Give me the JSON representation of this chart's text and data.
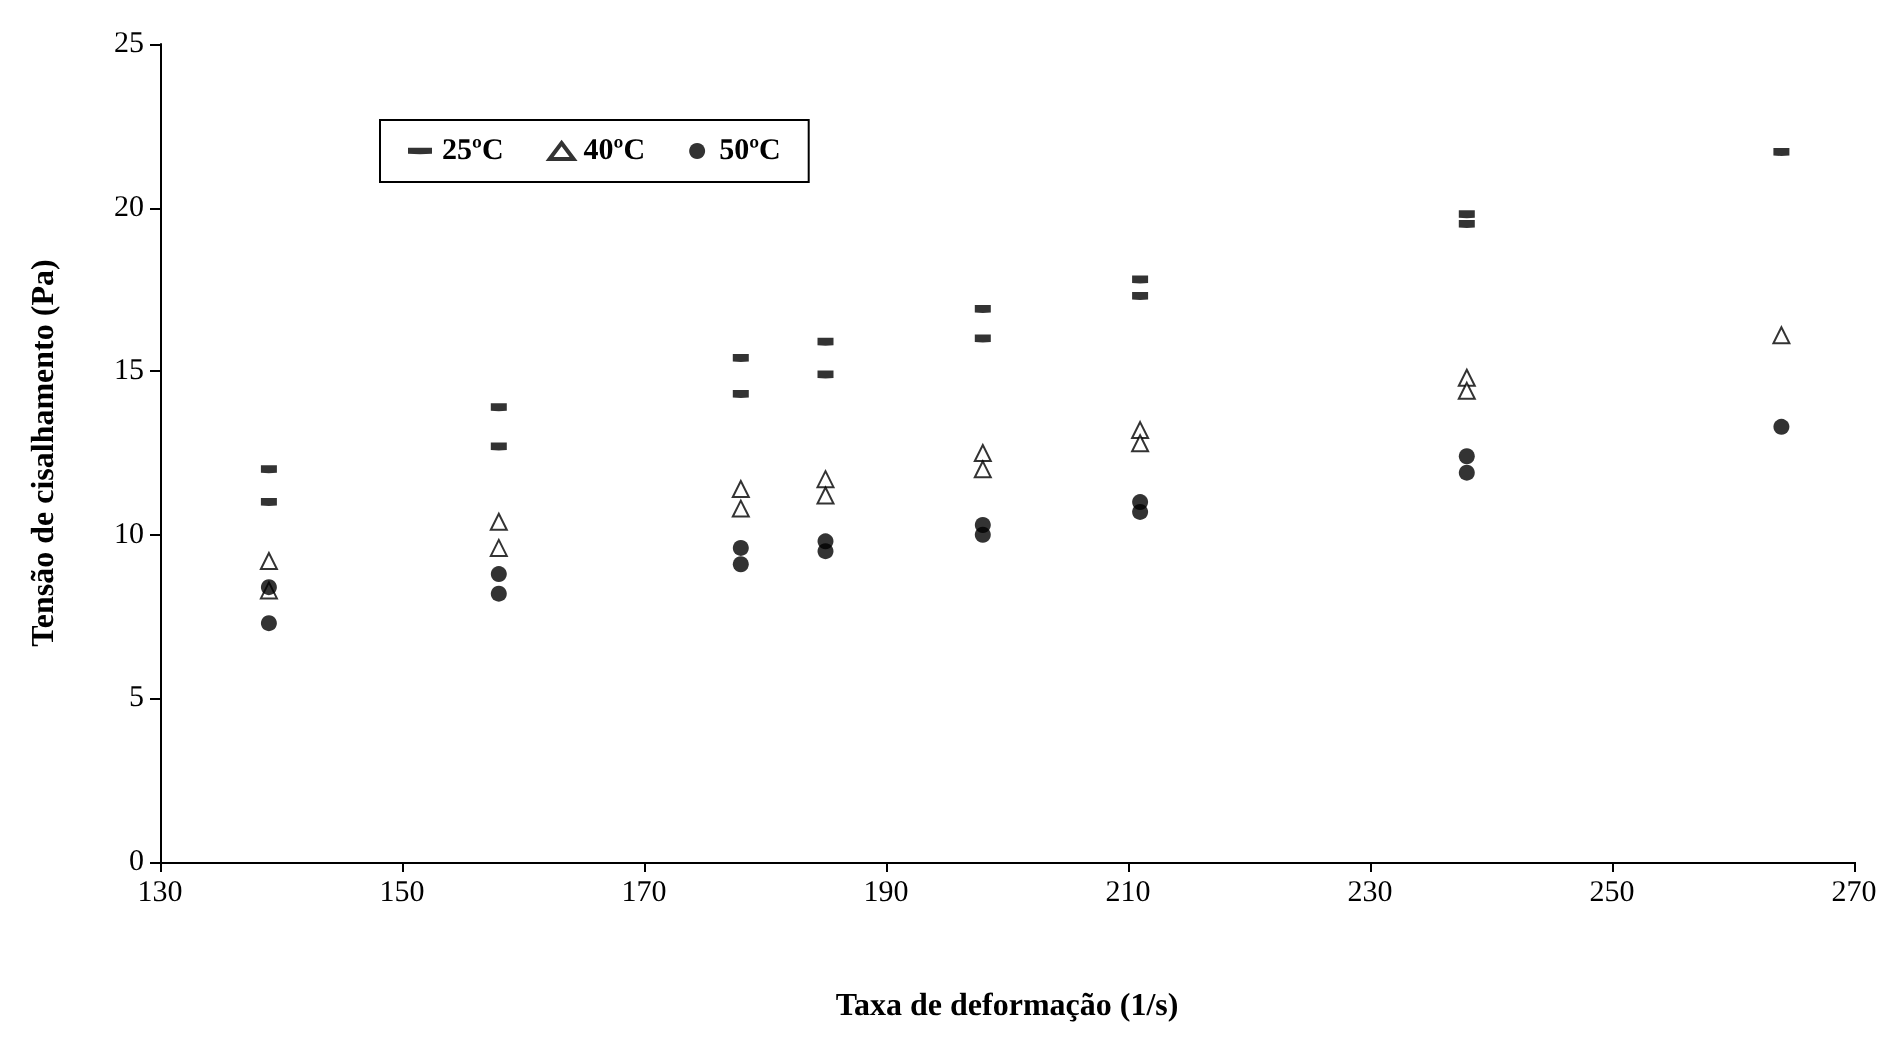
{
  "chart_data": {
    "type": "scatter",
    "xlabel": "Taxa de deformação (1/s)",
    "ylabel": "Tensão de cisalhamento (Pa)",
    "xlim": [
      130,
      270
    ],
    "xticks": [
      130,
      150,
      170,
      190,
      210,
      230,
      250,
      270
    ],
    "ylim": [
      0,
      25
    ],
    "yticks": [
      0,
      5,
      10,
      15,
      20,
      25
    ],
    "grid": false,
    "legend": "top left",
    "series": [
      {
        "name": "25ºC",
        "color": "#000000",
        "x": [
          139,
          139,
          158,
          158,
          178,
          178,
          185,
          185,
          198,
          198,
          211,
          211,
          238,
          238,
          264
        ],
        "values": [
          12.0,
          11.0,
          13.9,
          12.7,
          15.4,
          14.3,
          15.9,
          14.9,
          16.9,
          16.0,
          17.8,
          17.3,
          19.8,
          19.5,
          21.7
        ]
      },
      {
        "name": "40ºC",
        "color": "#000000",
        "marker": "triangle",
        "x": [
          139,
          139,
          158,
          158,
          178,
          178,
          185,
          185,
          198,
          198,
          211,
          211,
          238,
          238,
          264
        ],
        "values": [
          9.2,
          8.3,
          10.4,
          9.6,
          11.4,
          10.8,
          11.7,
          11.2,
          12.5,
          12.0,
          13.2,
          12.8,
          14.8,
          14.4,
          16.1
        ]
      },
      {
        "name": "50ºC",
        "color": "#000000",
        "marker": "circle",
        "x": [
          139,
          139,
          158,
          158,
          178,
          178,
          185,
          185,
          198,
          198,
          211,
          211,
          238,
          238,
          264
        ],
        "values": [
          8.4,
          7.3,
          8.8,
          8.2,
          9.6,
          9.1,
          9.8,
          9.5,
          10.3,
          10.0,
          11.0,
          10.7,
          12.4,
          11.9,
          13.3
        ]
      }
    ]
  }
}
